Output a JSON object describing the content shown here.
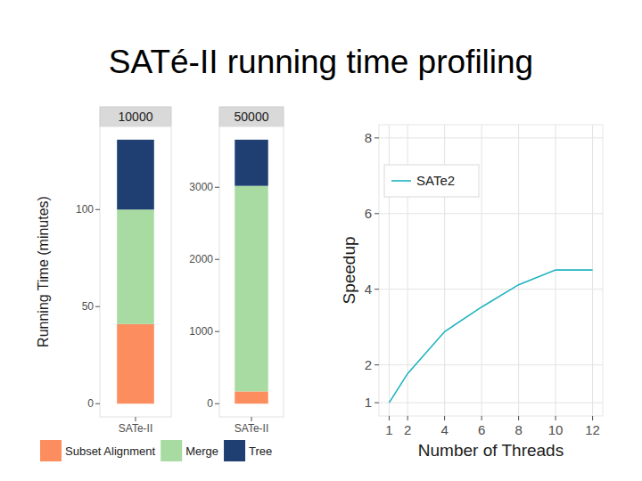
{
  "title": "SATé-II running time profiling",
  "chart_data": [
    {
      "type": "bar",
      "stacked": true,
      "title": "10000",
      "y_label": "Running Time (minutes)",
      "categories": [
        "SATe-II"
      ],
      "series": [
        {
          "name": "Subset Alignment",
          "color": "#fc8d5e",
          "values": [
            41
          ]
        },
        {
          "name": "Merge",
          "color": "#a8dba2",
          "values": [
            59
          ]
        },
        {
          "name": "Tree",
          "color": "#1f3f73",
          "values": [
            36
          ]
        }
      ],
      "ylim": [
        -6.8,
        142.8
      ],
      "yticks": [
        0,
        50,
        100
      ],
      "legend": "bottom"
    },
    {
      "type": "bar",
      "stacked": true,
      "title": "50000",
      "categories": [
        "SATe-II"
      ],
      "series": [
        {
          "name": "Subset Alignment",
          "color": "#fc8d5e",
          "values": [
            170
          ]
        },
        {
          "name": "Merge",
          "color": "#a8dba2",
          "values": [
            2850
          ]
        },
        {
          "name": "Tree",
          "color": "#1f3f73",
          "values": [
            640
          ]
        }
      ],
      "ylim": [
        -183,
        3843
      ],
      "yticks": [
        0,
        1000,
        2000,
        3000
      ]
    },
    {
      "type": "line",
      "x_label": "Number of Threads",
      "y_label": "Speedup",
      "x": [
        1,
        2,
        4,
        6,
        8,
        10,
        12
      ],
      "series": [
        {
          "name": "SATe2",
          "color": "#1fb3bf",
          "values": [
            1,
            1.77,
            2.88,
            3.53,
            4.12,
            4.51,
            4.51
          ]
        }
      ],
      "xlim": [
        0.45,
        12.55
      ],
      "xticks": [
        1,
        2,
        4,
        6,
        8,
        10,
        12
      ],
      "ylim": [
        0.65,
        8.35
      ],
      "yticks": [
        1,
        2,
        4,
        6,
        8
      ],
      "grid": true,
      "legend": "top-left"
    }
  ]
}
